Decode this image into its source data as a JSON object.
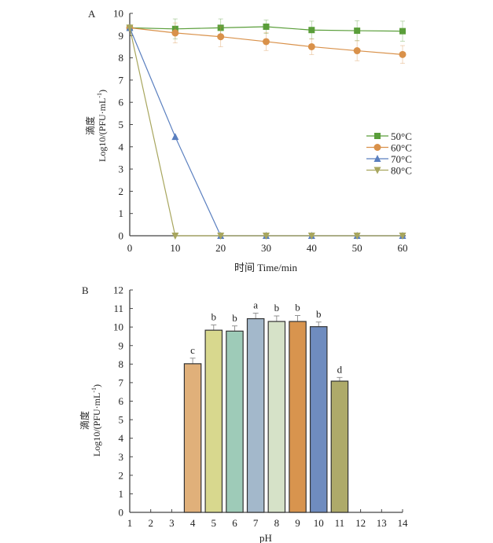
{
  "chart_data": [
    {
      "panel_label": "A",
      "type": "line",
      "title": "",
      "xlabel": "时间 Time/min",
      "ylabel_line1": "滴度",
      "ylabel_line2": "Log10/(PFU·mL",
      "ylabel_sup": "-1",
      "ylabel_end": ")",
      "xlim": [
        0,
        60
      ],
      "ylim": [
        0,
        10
      ],
      "xticks": [
        0,
        10,
        20,
        30,
        40,
        50,
        60
      ],
      "yticks": [
        0,
        1,
        2,
        3,
        4,
        5,
        6,
        7,
        8,
        9,
        10
      ],
      "legend_position": "right",
      "x": [
        0,
        10,
        20,
        30,
        40,
        50,
        60
      ],
      "series": [
        {
          "name": "50°C",
          "color": "#5a9e3a",
          "marker": "square",
          "values": [
            9.35,
            9.3,
            9.35,
            9.4,
            9.25,
            9.22,
            9.2
          ],
          "errors": [
            0.1,
            0.45,
            0.4,
            0.3,
            0.4,
            0.45,
            0.45
          ]
        },
        {
          "name": "60°C",
          "color": "#d9914a",
          "marker": "circle",
          "values": [
            9.35,
            9.12,
            8.95,
            8.73,
            8.5,
            8.32,
            8.15
          ],
          "errors": [
            0.1,
            0.45,
            0.45,
            0.4,
            0.35,
            0.45,
            0.4
          ]
        },
        {
          "name": "70°C",
          "color": "#5a7fbf",
          "marker": "triangle-up",
          "values": [
            9.35,
            4.45,
            0,
            0,
            0,
            0,
            0
          ],
          "errors": [
            0,
            0,
            0,
            0,
            0,
            0,
            0
          ]
        },
        {
          "name": "80°C",
          "color": "#a8a65e",
          "marker": "triangle-down",
          "values": [
            9.35,
            0,
            0,
            0,
            0,
            0,
            0
          ],
          "errors": [
            0,
            0,
            0,
            0,
            0,
            0,
            0
          ]
        }
      ]
    },
    {
      "panel_label": "B",
      "type": "bar",
      "title": "",
      "xlabel": "pH",
      "ylabel_line1": "滴度",
      "ylabel_line2": "Log10/(PFU·mL",
      "ylabel_sup": "-1",
      "ylabel_end": ")",
      "xlim": [
        1,
        14
      ],
      "ylim": [
        0,
        12
      ],
      "xticks": [
        1,
        2,
        3,
        4,
        5,
        6,
        7,
        8,
        9,
        10,
        11,
        12,
        13,
        14
      ],
      "yticks": [
        0,
        1,
        2,
        3,
        4,
        5,
        6,
        7,
        8,
        9,
        10,
        11,
        12
      ],
      "categories": [
        4,
        5,
        6,
        7,
        8,
        9,
        10,
        11
      ],
      "values": [
        8.02,
        9.83,
        9.78,
        10.45,
        10.3,
        10.3,
        10.02,
        7.08
      ],
      "errors": [
        0.3,
        0.28,
        0.28,
        0.3,
        0.3,
        0.32,
        0.25,
        0.2
      ],
      "significance": [
        "c",
        "b",
        "b",
        "a",
        "b",
        "b",
        "b",
        "d"
      ],
      "colors": [
        "#e0b07a",
        "#d8d88e",
        "#9ecbb8",
        "#a3b8cb",
        "#d6e2c8",
        "#d8944e",
        "#6f8cbf",
        "#aeaa6a"
      ]
    }
  ]
}
